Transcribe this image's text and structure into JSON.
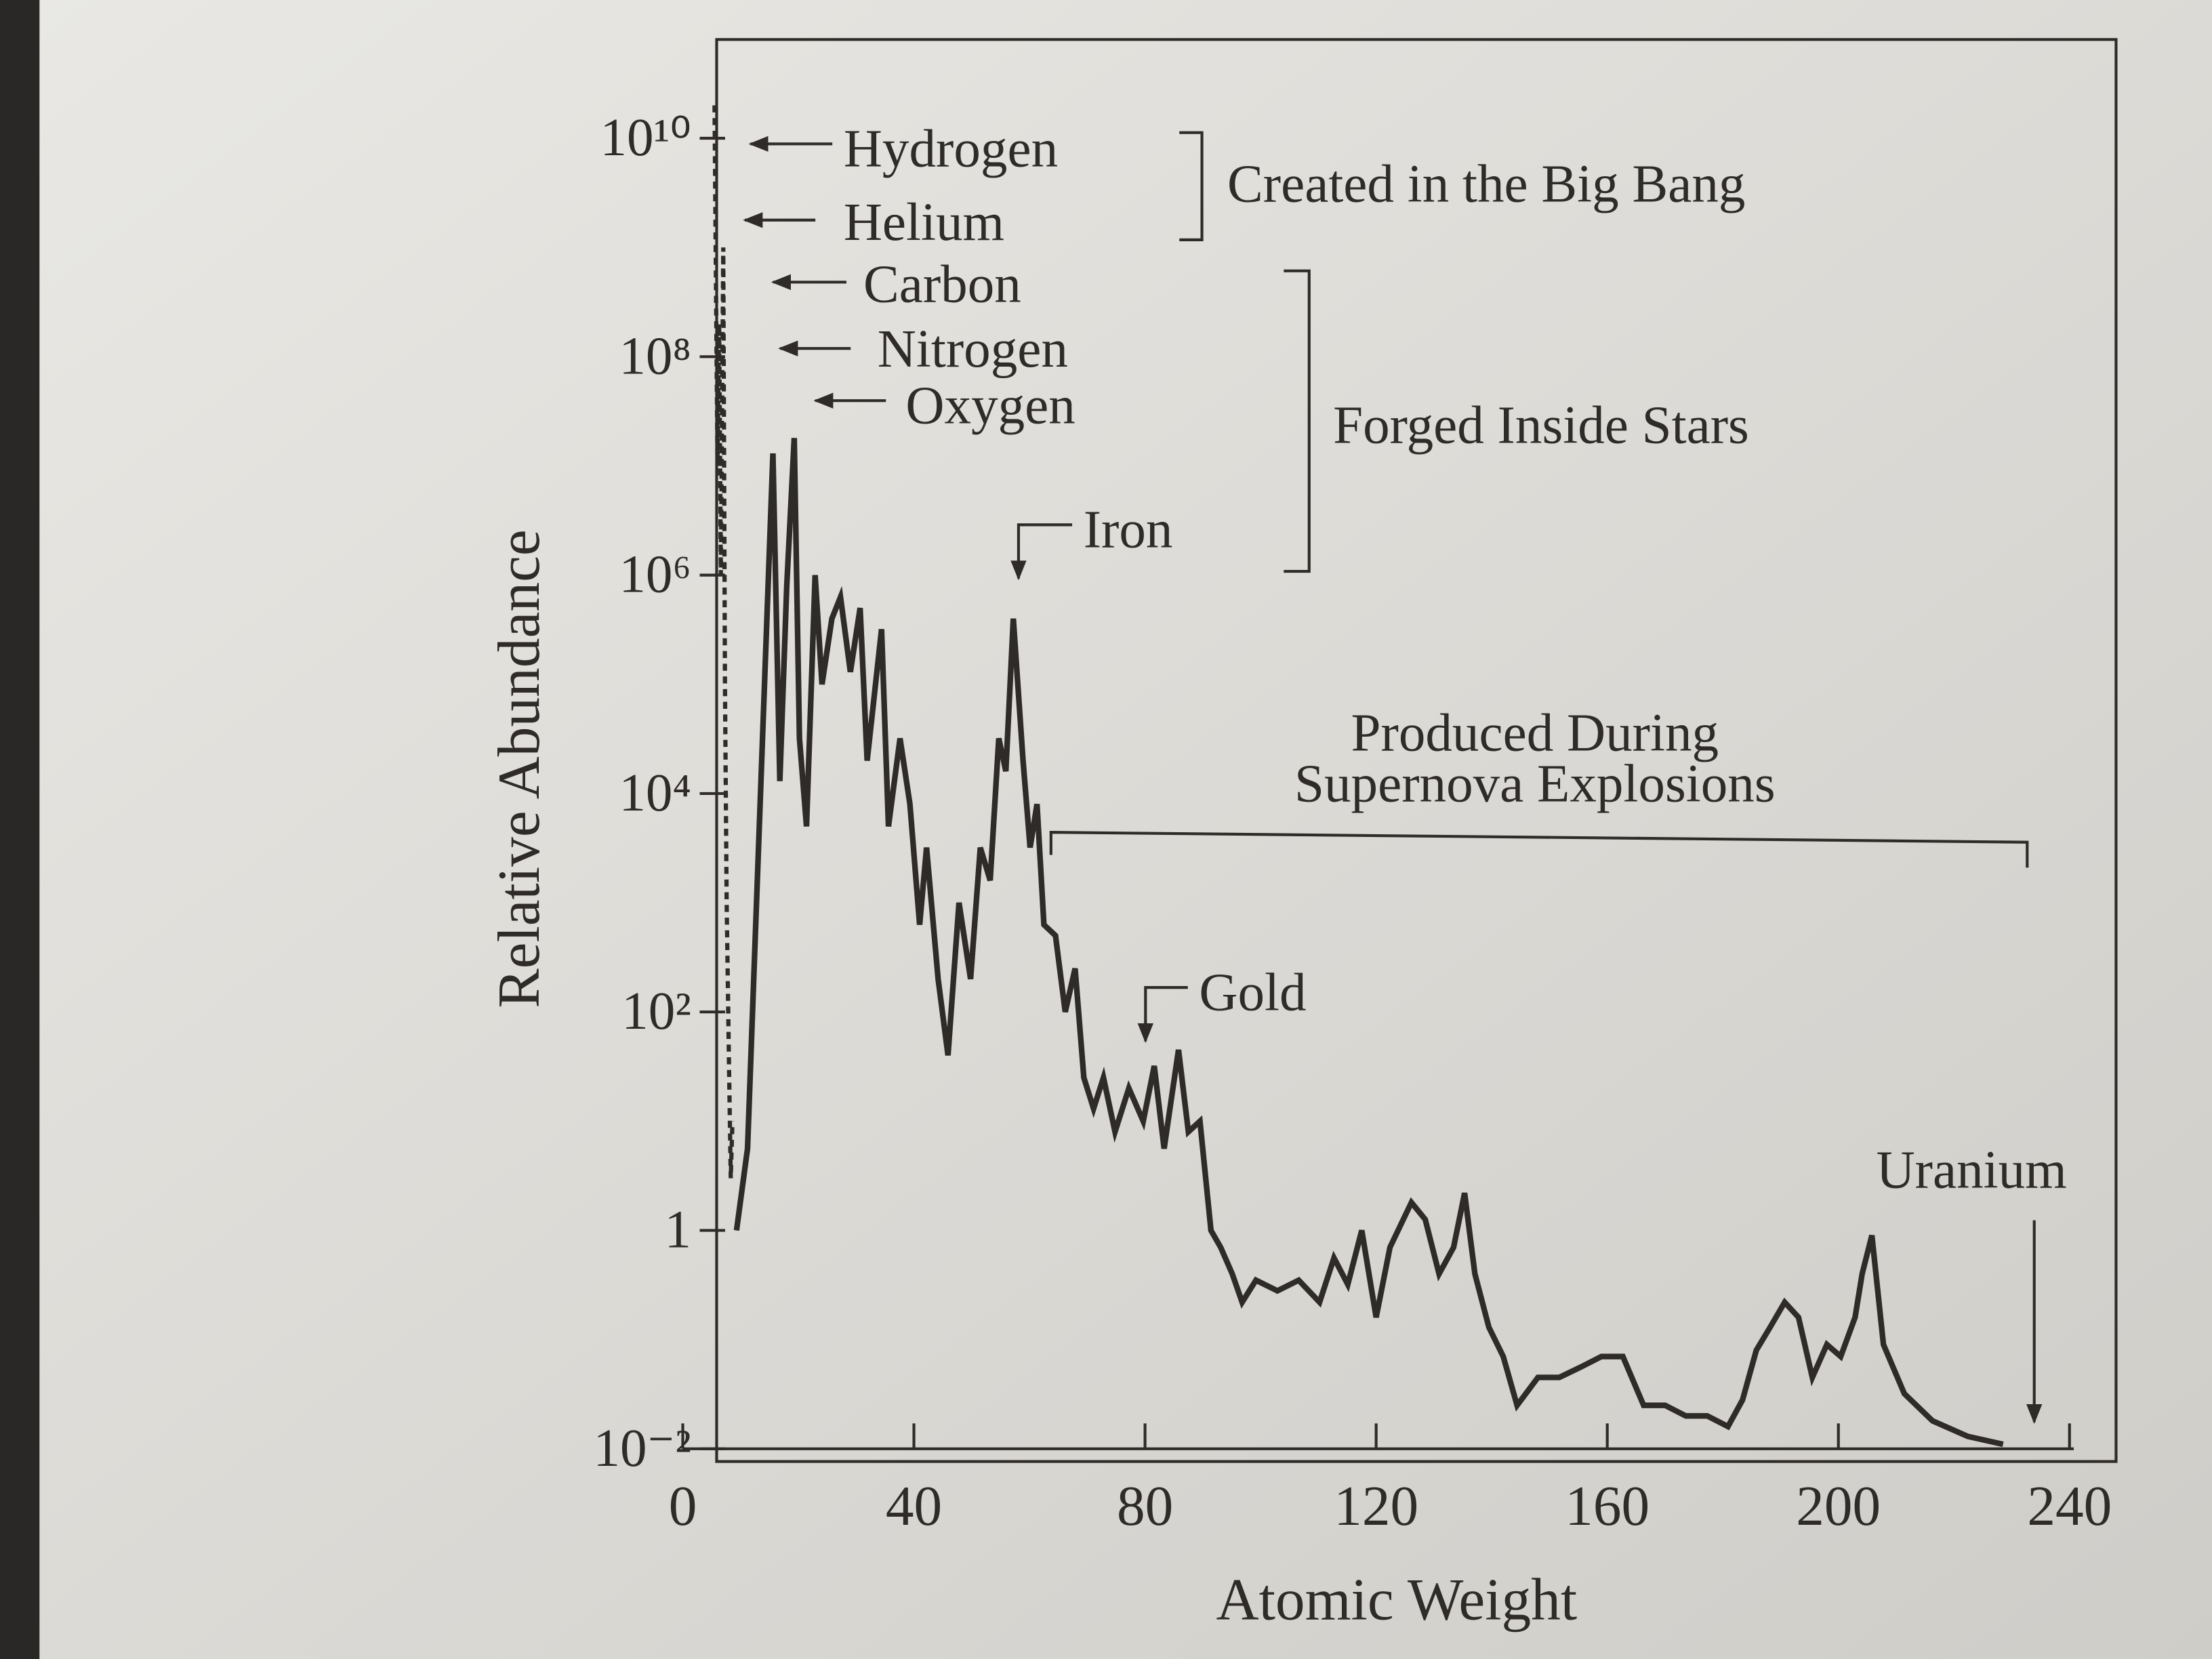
{
  "chart_data": {
    "type": "line",
    "xlabel": "Atomic Weight",
    "ylabel": "Relative Abundance",
    "log_y": true,
    "xlim": [
      0,
      240
    ],
    "xticks": [
      0,
      40,
      80,
      120,
      160,
      200,
      240
    ],
    "ylim": [
      0.01,
      10000000000
    ],
    "yticks": [
      {
        "value": 0.01,
        "label": "10⁻²"
      },
      1,
      {
        "value": 100,
        "label": "10²"
      },
      {
        "value": 10000,
        "label": "10⁴"
      },
      {
        "value": 1000000,
        "label": "10⁶"
      },
      {
        "value": 100000000,
        "label": "10⁸"
      },
      {
        "value": 10000000000,
        "label": "10¹⁰"
      }
    ],
    "series": [
      {
        "color": "#2e2b28",
        "dashed": true,
        "x": [
          5.5,
          5.7,
          6,
          6.3,
          6.6,
          7,
          7.3,
          7.6,
          8,
          8.3,
          8.6
        ],
        "values": [
          20000000000,
          1000000000,
          10000000,
          200000000,
          1000000,
          1000000000,
          100000,
          1000,
          30,
          3,
          10
        ]
      },
      {
        "color": "#2e2b28",
        "dashed": false,
        "x": [
          9.3,
          11.2,
          15.6,
          16.8,
          18,
          19.3,
          20.2,
          21.4,
          22.9,
          24.1,
          25.8,
          27.3,
          29,
          30.7,
          31.9,
          34.4,
          35.6,
          37.6,
          39.3,
          41,
          42.2,
          44.2,
          45.9,
          47.8,
          49.8,
          51.5,
          53.2,
          54.7,
          55.9,
          57.2,
          58.9,
          60.1,
          61.3,
          62.5,
          64.5,
          66.2,
          67.9,
          69.4,
          71.1,
          72.8,
          74.8,
          77.2,
          79.7,
          81.6,
          83.3,
          85.8,
          87.5,
          89.5,
          91.4,
          93.1,
          95.1,
          96.8,
          99.2,
          102.9,
          106.6,
          110.2,
          112.7,
          115.1,
          117.5,
          120,
          122.4,
          126.1,
          128.5,
          130.9,
          133.4,
          135.3,
          137.1,
          139.5,
          142,
          144.4,
          148,
          151.7,
          155.4,
          159,
          162.7,
          166.3,
          170,
          173.6,
          177.3,
          180.9,
          183.4,
          185.8,
          188.2,
          190.7,
          193.1,
          195.5,
          198,
          200.4,
          202.9,
          204.1,
          205.8,
          207.8,
          211.4,
          216.3,
          222.4,
          228.5
        ],
        "values": [
          1,
          5.6,
          13000000,
          13000,
          800000,
          18000000,
          32000,
          5000,
          1000000,
          100000,
          400000,
          630000,
          130000,
          500000,
          20000,
          320000,
          5000,
          32000,
          8000,
          630,
          3200,
          200,
          40,
          1000,
          200,
          3200,
          1600,
          32000,
          16000,
          400000,
          20000,
          3200,
          8000,
          630,
          500,
          100,
          250,
          25,
          13,
          25,
          8,
          20,
          10,
          32,
          5.6,
          45,
          8,
          10,
          1,
          0.7,
          0.4,
          0.22,
          0.35,
          0.28,
          0.35,
          0.22,
          0.56,
          0.32,
          1,
          0.16,
          0.7,
          1.8,
          1.26,
          0.4,
          0.7,
          2.2,
          0.4,
          0.13,
          0.07,
          0.025,
          0.045,
          0.045,
          0.056,
          0.07,
          0.07,
          0.025,
          0.025,
          0.02,
          0.02,
          0.016,
          0.028,
          0.08,
          0.13,
          0.22,
          0.16,
          0.045,
          0.09,
          0.07,
          0.16,
          0.4,
          0.9,
          0.09,
          0.032,
          0.018,
          0.013,
          0.011
        ]
      }
    ],
    "annotations": [
      "Hydrogen",
      "Helium",
      "Carbon",
      "Nitrogen",
      "Oxygen",
      "Iron",
      "Gold",
      "Uranium",
      "Created in the Big Bang",
      "Forged Inside Stars",
      "Produced During",
      "Supernova Explosions"
    ]
  }
}
